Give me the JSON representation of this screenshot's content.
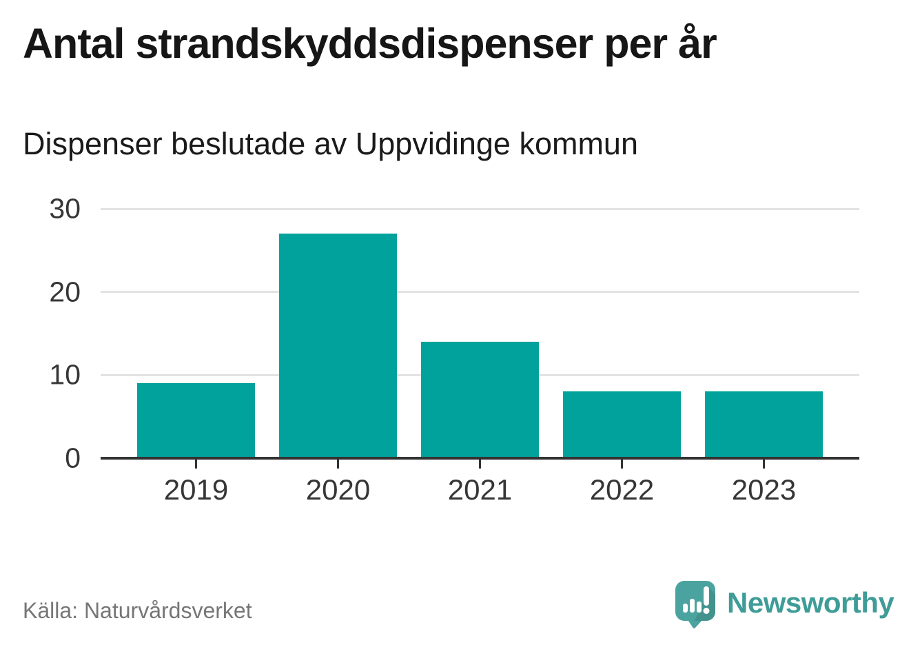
{
  "header": {
    "title": "Antal strandskyddsdispenser per år",
    "subtitle": "Dispenser beslutade av Uppvidinge kommun"
  },
  "chart_data": {
    "type": "bar",
    "title": "Antal strandskyddsdispenser per år",
    "subtitle": "Dispenser beslutade av Uppvidinge kommun",
    "categories": [
      "2019",
      "2020",
      "2021",
      "2022",
      "2023"
    ],
    "values": [
      9,
      27,
      14,
      8,
      8
    ],
    "xlabel": "",
    "ylabel": "",
    "ylim": [
      0,
      30
    ],
    "yticks": [
      0,
      10,
      20,
      30
    ],
    "grid": true,
    "legend": false,
    "bar_color": "#00a29b"
  },
  "footer": {
    "source": "Källa: Naturvårdsverket",
    "brand": "Newsworthy"
  },
  "colors": {
    "bar": "#00a29b",
    "title_text": "#161616",
    "axis_line": "#333333",
    "gridline": "#e3e3e3",
    "tick_label": "#363636",
    "source_text": "#767676",
    "brand_teal": "#3f9c97",
    "logo_bubble": "#4aa39e"
  }
}
